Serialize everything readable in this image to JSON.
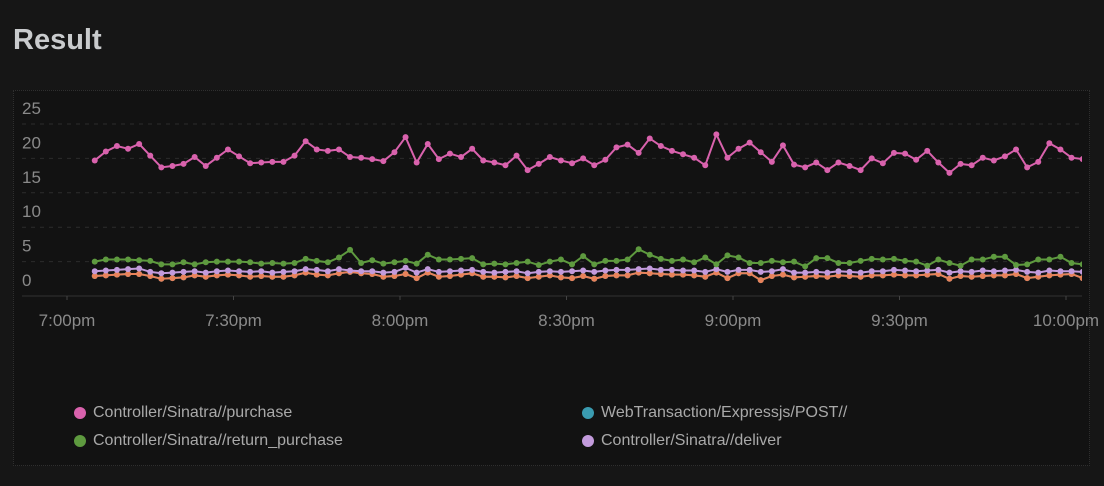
{
  "title": "Result",
  "chart_data": {
    "type": "line",
    "ylim": [
      0,
      25
    ],
    "yticks": [
      "0",
      "5",
      "10",
      "15",
      "20",
      "25"
    ],
    "xticks": [
      "7:00pm",
      "7:30pm",
      "8:00pm",
      "8:30pm",
      "9:00pm",
      "9:30pm",
      "10:00pm"
    ],
    "grid": true,
    "legend_position": "bottom",
    "x": [
      "19:05",
      "19:07",
      "19:09",
      "19:11",
      "19:13",
      "19:15",
      "19:17",
      "19:19",
      "19:21",
      "19:23",
      "19:25",
      "19:27",
      "19:29",
      "19:31",
      "19:33",
      "19:35",
      "19:37",
      "19:39",
      "19:41",
      "19:43",
      "19:45",
      "19:47",
      "19:49",
      "19:51",
      "19:53",
      "19:55",
      "19:57",
      "19:59",
      "20:01",
      "20:03",
      "20:05",
      "20:07",
      "20:09",
      "20:11",
      "20:13",
      "20:15",
      "20:17",
      "20:19",
      "20:21",
      "20:23",
      "20:25",
      "20:27",
      "20:29",
      "20:31",
      "20:33",
      "20:35",
      "20:37",
      "20:39",
      "20:41",
      "20:43",
      "20:45",
      "20:47",
      "20:49",
      "20:51",
      "20:53",
      "20:55",
      "20:57",
      "20:59",
      "21:01",
      "21:03",
      "21:05",
      "21:07",
      "21:09",
      "21:11",
      "21:13",
      "21:15",
      "21:17",
      "21:19",
      "21:21",
      "21:23",
      "21:25",
      "21:27",
      "21:29",
      "21:31",
      "21:33",
      "21:35",
      "21:37",
      "21:39",
      "21:41",
      "21:43",
      "21:45",
      "21:47",
      "21:49",
      "21:51",
      "21:53",
      "21:55",
      "21:57",
      "21:59",
      "22:01",
      "22:03"
    ],
    "series": [
      {
        "name": "WebTransaction/Expressjs/POST//",
        "color": "#3a9bb0",
        "values": [
          2.9,
          3.0,
          3.1,
          3.2,
          3.2,
          2.9,
          2.5,
          2.6,
          2.7,
          3.0,
          2.8,
          3.0,
          3.1,
          3.0,
          2.8,
          2.9,
          2.8,
          2.8,
          3.0,
          3.4,
          3.1,
          3.0,
          3.3,
          3.5,
          3.3,
          3.2,
          2.8,
          2.9,
          3.2,
          2.6,
          3.4,
          2.8,
          2.9,
          3.1,
          3.3,
          2.8,
          2.8,
          2.7,
          2.9,
          2.6,
          2.8,
          3.0,
          2.7,
          2.6,
          2.9,
          2.5,
          2.9,
          3.0,
          3.0,
          3.4,
          3.3,
          3.2,
          3.1,
          3.1,
          3.0,
          2.8,
          3.4,
          2.6,
          3.3,
          3.3,
          2.3,
          2.9,
          3.1,
          2.7,
          2.8,
          2.9,
          2.8,
          3.0,
          2.9,
          2.8,
          3.0,
          3.0,
          3.1,
          3.0,
          3.0,
          3.1,
          3.2,
          2.5,
          2.9,
          2.8,
          2.9,
          3.0,
          3.0,
          3.2,
          2.6,
          2.8,
          3.0,
          3.1,
          3.2,
          2.6
        ]
      },
      {
        "name": "",
        "color": "#e8825a",
        "values": [
          2.9,
          3.0,
          3.1,
          3.2,
          3.2,
          2.9,
          2.5,
          2.6,
          2.7,
          3.0,
          2.8,
          3.0,
          3.1,
          3.0,
          2.8,
          2.9,
          2.8,
          2.8,
          3.0,
          3.4,
          3.1,
          3.0,
          3.3,
          3.5,
          3.3,
          3.2,
          2.8,
          2.9,
          3.2,
          2.6,
          3.4,
          2.8,
          2.9,
          3.1,
          3.3,
          2.8,
          2.8,
          2.7,
          2.9,
          2.6,
          2.8,
          3.0,
          2.7,
          2.6,
          2.9,
          2.5,
          2.9,
          3.0,
          3.0,
          3.4,
          3.3,
          3.2,
          3.1,
          3.1,
          3.0,
          2.8,
          3.4,
          2.6,
          3.3,
          3.3,
          2.3,
          2.9,
          3.1,
          2.7,
          2.8,
          2.9,
          2.8,
          3.0,
          2.9,
          2.8,
          3.0,
          3.0,
          3.1,
          3.0,
          3.0,
          3.1,
          3.2,
          2.5,
          2.9,
          2.8,
          2.9,
          3.0,
          3.0,
          3.2,
          2.6,
          2.8,
          3.0,
          3.1,
          3.2,
          2.6
        ]
      },
      {
        "name": "Controller/Sinatra//deliver",
        "color": "#c39bdc",
        "values": [
          3.6,
          3.7,
          3.8,
          3.9,
          4.0,
          3.5,
          3.3,
          3.4,
          3.5,
          3.6,
          3.4,
          3.6,
          3.7,
          3.6,
          3.5,
          3.6,
          3.4,
          3.5,
          3.6,
          3.9,
          3.8,
          3.6,
          3.9,
          3.7,
          3.6,
          3.6,
          3.4,
          3.5,
          4.1,
          3.4,
          3.9,
          3.5,
          3.6,
          3.7,
          3.8,
          3.5,
          3.4,
          3.5,
          3.6,
          3.3,
          3.5,
          3.6,
          3.5,
          3.6,
          3.7,
          3.5,
          3.7,
          3.8,
          3.8,
          3.9,
          4.0,
          3.8,
          3.8,
          3.7,
          3.7,
          3.5,
          3.9,
          3.5,
          3.8,
          3.8,
          3.5,
          3.6,
          3.9,
          3.4,
          3.4,
          3.5,
          3.4,
          3.6,
          3.5,
          3.4,
          3.6,
          3.6,
          3.8,
          3.7,
          3.6,
          3.7,
          3.8,
          3.4,
          3.6,
          3.5,
          3.7,
          3.6,
          3.7,
          3.8,
          3.5,
          3.4,
          3.7,
          3.6,
          3.6,
          3.5
        ]
      },
      {
        "name": "Controller/Sinatra//return_purchase",
        "color": "#5e9a3f",
        "values": [
          5.0,
          5.3,
          5.3,
          5.3,
          5.2,
          5.1,
          4.6,
          4.6,
          4.9,
          4.6,
          4.9,
          5.0,
          5.0,
          5.0,
          4.9,
          4.7,
          4.8,
          4.7,
          4.8,
          5.4,
          5.1,
          4.9,
          5.6,
          6.7,
          4.8,
          5.2,
          4.7,
          4.9,
          5.1,
          4.7,
          6.0,
          5.3,
          5.3,
          5.4,
          5.5,
          4.6,
          4.7,
          4.6,
          4.8,
          5.0,
          4.5,
          5.0,
          5.3,
          4.6,
          5.8,
          4.6,
          5.1,
          5.1,
          5.3,
          6.8,
          6.0,
          5.4,
          5.1,
          5.3,
          4.9,
          5.6,
          4.6,
          5.9,
          5.6,
          4.8,
          4.8,
          5.1,
          4.9,
          5.0,
          4.3,
          5.5,
          5.5,
          4.8,
          4.8,
          5.1,
          5.4,
          5.3,
          5.4,
          5.1,
          5.0,
          4.4,
          5.3,
          4.8,
          4.4,
          5.3,
          5.3,
          5.7,
          5.7,
          4.5,
          4.6,
          5.3,
          5.3,
          5.7,
          4.8,
          4.6
        ]
      },
      {
        "name": "Controller/Sinatra//purchase",
        "color": "#d962ad",
        "values": [
          19.7,
          21,
          21.8,
          21.4,
          22.1,
          20.4,
          18.7,
          18.9,
          19.2,
          20.2,
          18.9,
          20.1,
          21.3,
          20.3,
          19.3,
          19.4,
          19.5,
          19.5,
          20.4,
          22.5,
          21.3,
          21.1,
          21.3,
          20.2,
          20.1,
          19.9,
          19.6,
          20.9,
          23.1,
          19.4,
          22.1,
          19.9,
          20.7,
          20.2,
          21.4,
          19.7,
          19.4,
          19,
          20.4,
          18.3,
          19.2,
          20.2,
          19.7,
          19.3,
          20,
          19,
          19.8,
          21.6,
          22,
          20.8,
          22.9,
          21.8,
          21.1,
          20.6,
          20.1,
          19,
          23.5,
          20.1,
          21.4,
          22.3,
          20.9,
          19.5,
          21.9,
          19.1,
          18.7,
          19.4,
          18.3,
          19.4,
          18.9,
          18.3,
          20,
          19.3,
          20.8,
          20.7,
          19.8,
          21.1,
          19.4,
          17.9,
          19.2,
          19,
          20.1,
          19.7,
          20.3,
          21.3,
          18.7,
          19.5,
          22.2,
          21.3,
          20.1,
          19.9
        ]
      }
    ]
  },
  "legend": [
    {
      "label": "Controller/Sinatra//purchase",
      "color": "#d962ad"
    },
    {
      "label": "WebTransaction/Expressjs/POST//",
      "color": "#3a9bb0"
    },
    {
      "label": "Controller/Sinatra//return_purchase",
      "color": "#5e9a3f"
    },
    {
      "label": "Controller/Sinatra//deliver",
      "color": "#c39bdc"
    }
  ]
}
